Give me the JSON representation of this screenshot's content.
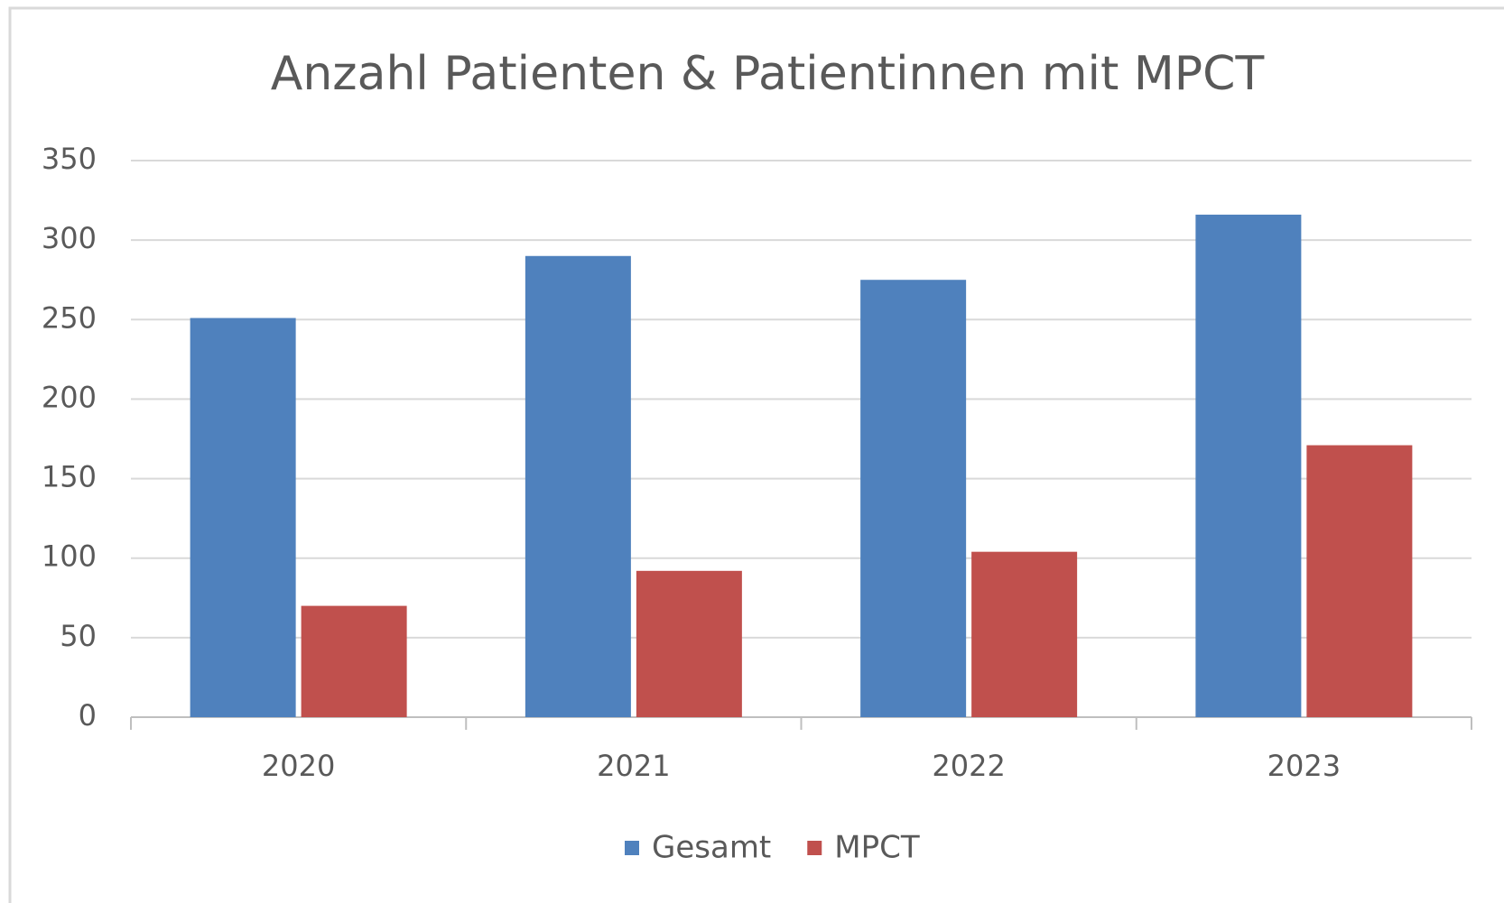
{
  "chart_data": {
    "type": "bar",
    "title": "Anzahl Patienten & Patientinnen mit MPCT",
    "categories": [
      "2020",
      "2021",
      "2022",
      "2023"
    ],
    "series": [
      {
        "name": "Gesamt",
        "color": "#4f81bd",
        "values": [
          251,
          290,
          275,
          316
        ]
      },
      {
        "name": "MPCT",
        "color": "#c0504d",
        "values": [
          70,
          92,
          104,
          171
        ]
      }
    ],
    "ylim": [
      0,
      350
    ],
    "yticks": [
      0,
      50,
      100,
      150,
      200,
      250,
      300,
      350
    ],
    "grid": true,
    "legend": "bottom"
  }
}
